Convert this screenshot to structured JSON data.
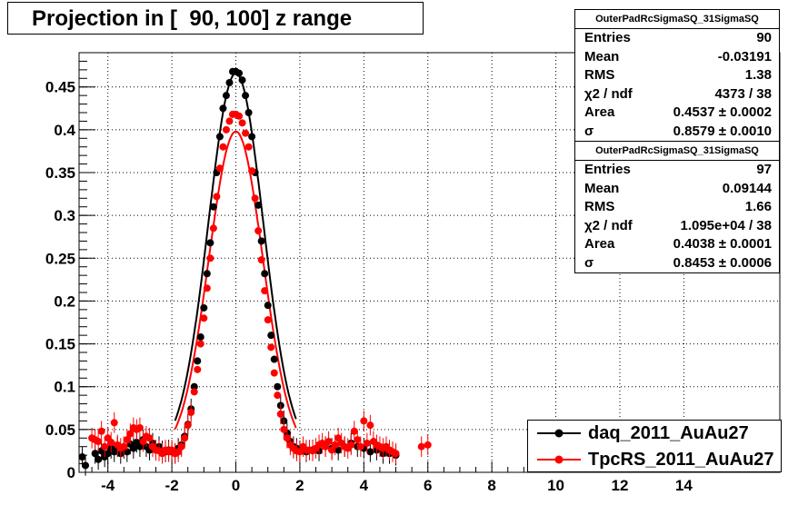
{
  "chart_data": {
    "type": "scatter",
    "title": "Projection in [  90, 100] z range",
    "xlim": [
      -4.9,
      17.0
    ],
    "ylim": [
      0,
      0.49
    ],
    "x_ticks": [
      -4,
      -2,
      0,
      2,
      4,
      6,
      8,
      10,
      12,
      14
    ],
    "y_ticks": [
      0,
      0.05,
      0.1,
      0.15,
      0.2,
      0.25,
      0.3,
      0.35,
      0.4,
      0.45
    ],
    "grid": true,
    "legend_position": "bottom-right",
    "series": [
      {
        "name": "daq_2011_AuAu27",
        "color": "#000000",
        "gauss_fit": {
          "amplitude": 0.466,
          "mean": 0.0,
          "sigma": 0.8579,
          "baseline": 0.022
        },
        "points": [
          [
            -4.8,
            0.018
          ],
          [
            -4.7,
            0.008
          ],
          [
            -4.4,
            0.022
          ],
          [
            -4.3,
            0.015
          ],
          [
            -4.2,
            0.025
          ],
          [
            -4.1,
            0.018
          ],
          [
            -4.0,
            0.022
          ],
          [
            -3.9,
            0.028
          ],
          [
            -3.8,
            0.024
          ],
          [
            -3.7,
            0.03
          ],
          [
            -3.6,
            0.022
          ],
          [
            -3.5,
            0.028
          ],
          [
            -3.4,
            0.024
          ],
          [
            -3.3,
            0.033
          ],
          [
            -3.2,
            0.028
          ],
          [
            -3.1,
            0.035
          ],
          [
            -3.0,
            0.03
          ],
          [
            -2.9,
            0.038
          ],
          [
            -2.8,
            0.03
          ],
          [
            -2.7,
            0.026
          ],
          [
            -2.6,
            0.034
          ],
          [
            -2.5,
            0.026
          ],
          [
            -2.4,
            0.03
          ],
          [
            -2.3,
            0.025
          ],
          [
            -2.2,
            0.024
          ],
          [
            -2.1,
            0.026
          ],
          [
            -2.0,
            0.024
          ],
          [
            -1.9,
            0.022
          ],
          [
            -1.8,
            0.028
          ],
          [
            -1.7,
            0.032
          ],
          [
            -1.6,
            0.042
          ],
          [
            -1.5,
            0.056
          ],
          [
            -1.4,
            0.074
          ],
          [
            -1.3,
            0.1
          ],
          [
            -1.2,
            0.13
          ],
          [
            -1.1,
            0.158
          ],
          [
            -1.0,
            0.192
          ],
          [
            -0.9,
            0.232
          ],
          [
            -0.8,
            0.268
          ],
          [
            -0.7,
            0.31
          ],
          [
            -0.6,
            0.35
          ],
          [
            -0.5,
            0.392
          ],
          [
            -0.4,
            0.425
          ],
          [
            -0.3,
            0.44
          ],
          [
            -0.2,
            0.455
          ],
          [
            -0.1,
            0.468
          ],
          [
            0.0,
            0.468
          ],
          [
            0.1,
            0.466
          ],
          [
            0.2,
            0.458
          ],
          [
            0.3,
            0.44
          ],
          [
            0.4,
            0.42
          ],
          [
            0.5,
            0.392
          ],
          [
            0.6,
            0.35
          ],
          [
            0.7,
            0.312
          ],
          [
            0.8,
            0.27
          ],
          [
            0.9,
            0.232
          ],
          [
            1.0,
            0.195
          ],
          [
            1.1,
            0.16
          ],
          [
            1.2,
            0.132
          ],
          [
            1.3,
            0.1
          ],
          [
            1.4,
            0.078
          ],
          [
            1.5,
            0.06
          ],
          [
            1.6,
            0.046
          ],
          [
            1.7,
            0.036
          ],
          [
            1.8,
            0.03
          ],
          [
            1.9,
            0.028
          ],
          [
            2.0,
            0.025
          ],
          [
            2.2,
            0.024
          ],
          [
            2.4,
            0.026
          ],
          [
            2.6,
            0.025
          ],
          [
            2.8,
            0.03
          ],
          [
            3.0,
            0.028
          ],
          [
            3.2,
            0.026
          ],
          [
            3.4,
            0.03
          ],
          [
            3.6,
            0.034
          ],
          [
            3.8,
            0.03
          ],
          [
            4.0,
            0.028
          ],
          [
            4.2,
            0.024
          ],
          [
            4.4,
            0.026
          ],
          [
            4.6,
            0.022
          ],
          [
            4.8,
            0.022
          ],
          [
            5.0,
            0.02
          ]
        ]
      },
      {
        "name": "TpcRS_2011_AuAu27",
        "color": "#ff0000",
        "gauss_fit": {
          "amplitude": 0.398,
          "mean": 0.0,
          "sigma": 0.8453,
          "baseline": 0.02
        },
        "points": [
          [
            -4.5,
            0.04
          ],
          [
            -4.4,
            0.038
          ],
          [
            -4.3,
            0.036
          ],
          [
            -4.2,
            0.048
          ],
          [
            -4.1,
            0.03
          ],
          [
            -4.0,
            0.04
          ],
          [
            -3.9,
            0.035
          ],
          [
            -3.8,
            0.058
          ],
          [
            -3.7,
            0.032
          ],
          [
            -3.6,
            0.028
          ],
          [
            -3.5,
            0.03
          ],
          [
            -3.4,
            0.038
          ],
          [
            -3.3,
            0.045
          ],
          [
            -3.2,
            0.052
          ],
          [
            -3.1,
            0.05
          ],
          [
            -3.0,
            0.052
          ],
          [
            -2.9,
            0.036
          ],
          [
            -2.8,
            0.042
          ],
          [
            -2.7,
            0.04
          ],
          [
            -2.6,
            0.03
          ],
          [
            -2.5,
            0.026
          ],
          [
            -2.4,
            0.025
          ],
          [
            -2.3,
            0.022
          ],
          [
            -2.2,
            0.026
          ],
          [
            -2.1,
            0.024
          ],
          [
            -2.0,
            0.026
          ],
          [
            -1.9,
            0.022
          ],
          [
            -1.8,
            0.024
          ],
          [
            -1.7,
            0.03
          ],
          [
            -1.6,
            0.04
          ],
          [
            -1.5,
            0.055
          ],
          [
            -1.4,
            0.07
          ],
          [
            -1.3,
            0.094
          ],
          [
            -1.2,
            0.12
          ],
          [
            -1.1,
            0.15
          ],
          [
            -1.0,
            0.18
          ],
          [
            -0.9,
            0.215
          ],
          [
            -0.8,
            0.25
          ],
          [
            -0.7,
            0.285
          ],
          [
            -0.6,
            0.322
          ],
          [
            -0.5,
            0.355
          ],
          [
            -0.4,
            0.38
          ],
          [
            -0.3,
            0.4
          ],
          [
            -0.2,
            0.41
          ],
          [
            -0.1,
            0.418
          ],
          [
            0.0,
            0.418
          ],
          [
            0.1,
            0.416
          ],
          [
            0.2,
            0.408
          ],
          [
            0.3,
            0.396
          ],
          [
            0.4,
            0.38
          ],
          [
            0.5,
            0.352
          ],
          [
            0.6,
            0.32
          ],
          [
            0.7,
            0.282
          ],
          [
            0.8,
            0.248
          ],
          [
            0.9,
            0.212
          ],
          [
            1.0,
            0.178
          ],
          [
            1.1,
            0.146
          ],
          [
            1.2,
            0.116
          ],
          [
            1.3,
            0.09
          ],
          [
            1.4,
            0.068
          ],
          [
            1.5,
            0.05
          ],
          [
            1.6,
            0.04
          ],
          [
            1.7,
            0.032
          ],
          [
            1.8,
            0.028
          ],
          [
            1.9,
            0.025
          ],
          [
            2.0,
            0.024
          ],
          [
            2.1,
            0.03
          ],
          [
            2.2,
            0.026
          ],
          [
            2.3,
            0.026
          ],
          [
            2.4,
            0.025
          ],
          [
            2.5,
            0.028
          ],
          [
            2.6,
            0.032
          ],
          [
            2.7,
            0.034
          ],
          [
            2.8,
            0.03
          ],
          [
            2.9,
            0.036
          ],
          [
            3.0,
            0.026
          ],
          [
            3.1,
            0.032
          ],
          [
            3.2,
            0.04
          ],
          [
            3.3,
            0.034
          ],
          [
            3.4,
            0.03
          ],
          [
            3.5,
            0.028
          ],
          [
            3.6,
            0.032
          ],
          [
            3.7,
            0.048
          ],
          [
            3.8,
            0.038
          ],
          [
            3.9,
            0.03
          ],
          [
            4.0,
            0.06
          ],
          [
            4.1,
            0.034
          ],
          [
            4.2,
            0.055
          ],
          [
            4.3,
            0.036
          ],
          [
            4.4,
            0.032
          ],
          [
            4.5,
            0.03
          ],
          [
            4.6,
            0.028
          ],
          [
            4.7,
            0.03
          ],
          [
            4.8,
            0.026
          ],
          [
            4.9,
            0.024
          ],
          [
            5.0,
            0.022
          ],
          [
            5.8,
            0.03
          ],
          [
            6.0,
            0.032
          ]
        ]
      }
    ]
  },
  "stats_boxes": [
    {
      "header": "OuterPadRcSigmaSQ_31SigmaSQ",
      "rows": [
        {
          "label": "Entries",
          "value": "90"
        },
        {
          "label": "Mean",
          "value": "-0.03191"
        },
        {
          "label": "RMS",
          "value": "1.38"
        },
        {
          "label": "χ2 / ndf",
          "value": "4373 / 38"
        },
        {
          "label": "Area",
          "value": "0.4537 ± 0.0002"
        },
        {
          "label": "σ",
          "value": "0.8579 ± 0.0010"
        }
      ]
    },
    {
      "header": "OuterPadRcSigmaSQ_31SigmaSQ",
      "rows": [
        {
          "label": "Entries",
          "value": "97"
        },
        {
          "label": "Mean",
          "value": "0.09144"
        },
        {
          "label": "RMS",
          "value": "1.66"
        },
        {
          "label": "χ2 / ndf",
          "value": "1.095e+04 / 38"
        },
        {
          "label": "Area",
          "value": "0.4038 ± 0.0001"
        },
        {
          "label": "σ",
          "value": "0.8453 ± 0.0006"
        }
      ]
    }
  ]
}
